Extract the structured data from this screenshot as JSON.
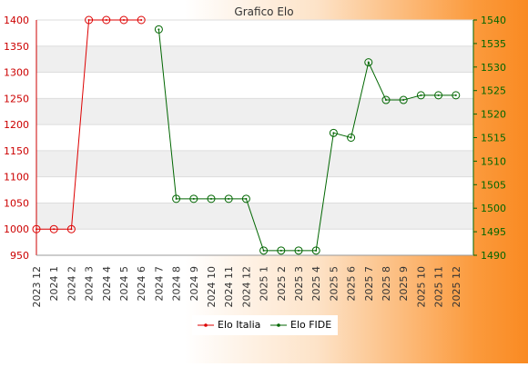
{
  "chart_data": {
    "type": "line",
    "title": "Grafico Elo",
    "categories": [
      "2023 12",
      "2024 1",
      "2024 2",
      "2024 3",
      "2024 4",
      "2024 5",
      "2024 6",
      "2024 7",
      "2024 8",
      "2024 9",
      "2024 10",
      "2024 11",
      "2024 12",
      "2025 1",
      "2025 2",
      "2025 3",
      "2025 4",
      "2025 5",
      "2025 6",
      "2025 7",
      "2025 8",
      "2025 9",
      "2025 10",
      "2025 11",
      "2025 12"
    ],
    "y_left": {
      "ylim": [
        950,
        1400
      ],
      "ticks": [
        950,
        1000,
        1050,
        1100,
        1150,
        1200,
        1250,
        1300,
        1350,
        1400
      ]
    },
    "y_right": {
      "ylim": [
        1490,
        1540
      ],
      "ticks": [
        1490,
        1495,
        1500,
        1505,
        1510,
        1515,
        1520,
        1525,
        1530,
        1535,
        1540
      ]
    },
    "series": [
      {
        "name": "Elo Italia",
        "color": "#dd0000",
        "axis": "left",
        "values": [
          1000,
          1000,
          1000,
          1400,
          1400,
          1400,
          1400,
          null,
          null,
          null,
          null,
          null,
          null,
          null,
          null,
          null,
          null,
          null,
          null,
          null,
          null,
          null,
          null,
          null,
          null
        ]
      },
      {
        "name": "Elo FIDE",
        "color": "#006600",
        "axis": "right",
        "values": [
          null,
          null,
          null,
          null,
          null,
          null,
          null,
          1538,
          1502,
          1502,
          1502,
          1502,
          1502,
          1491,
          1491,
          1491,
          1491,
          1516,
          1515,
          1531,
          1523,
          1523,
          1524,
          1524,
          1524
        ]
      }
    ],
    "grid": true,
    "legend": "bottom-center"
  }
}
